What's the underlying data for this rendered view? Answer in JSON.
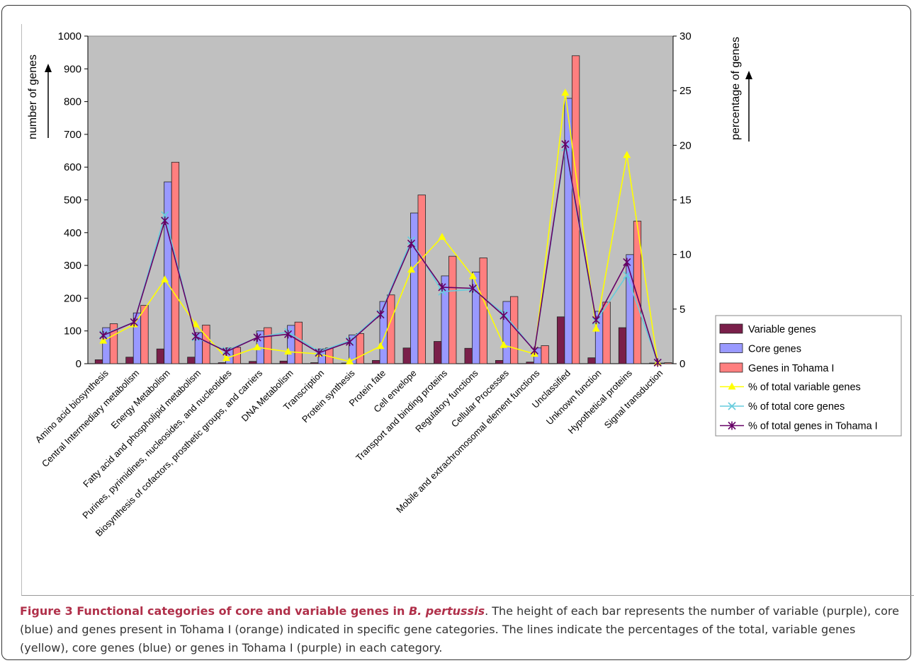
{
  "chart_data": {
    "type": "bar",
    "categories": [
      "Amino acid biosynthesis",
      "Central Intermediary metabolism",
      "Energy Metabolism",
      "Fatty acid and phospholipid metabolism",
      "Purines, pyrimidines, nucleosides, and nucleotides",
      "Biosynthesis of cofactors, prosthetic groups, and carriers",
      "DNA Metabolism",
      "Transcription",
      "Protein synthesis",
      "Protein fate",
      "Cell envelope",
      "Transport and binding proteins",
      "Regulatory functions",
      "Cellular Processes",
      "Mobile and extrachromosomal element functions",
      "Unclassified",
      "Unknown function",
      "Hypothetical proteins",
      "Signal transduction"
    ],
    "bar_series": [
      {
        "name": "Variable genes",
        "color": "#7a1f4a",
        "values": [
          12,
          20,
          45,
          20,
          3,
          7,
          8,
          3,
          2,
          10,
          48,
          68,
          47,
          10,
          5,
          143,
          18,
          110,
          2
        ]
      },
      {
        "name": "Core genes",
        "color": "#9999ff",
        "values": [
          110,
          155,
          555,
          95,
          48,
          100,
          117,
          45,
          88,
          190,
          460,
          268,
          280,
          190,
          48,
          810,
          160,
          333,
          2
        ]
      },
      {
        "name": "Genes in Tohama I",
        "color": "#ff7f7f",
        "values": [
          122,
          178,
          615,
          118,
          50,
          110,
          127,
          48,
          92,
          210,
          515,
          328,
          323,
          205,
          55,
          940,
          188,
          435,
          3
        ]
      }
    ],
    "line_series": [
      {
        "name": "% of total variable  genes",
        "color": "#ffff00",
        "marker": "triangle",
        "values": [
          2.1,
          3.6,
          7.7,
          3.6,
          0.5,
          1.5,
          1.1,
          0.9,
          0.2,
          1.6,
          8.6,
          11.6,
          8.0,
          1.7,
          0.9,
          24.8,
          3.2,
          19.1,
          0.1
        ]
      },
      {
        "name": "% of total core genes",
        "color": "#66ccdd",
        "marker": "x",
        "values": [
          2.7,
          3.8,
          13.6,
          2.4,
          1.2,
          2.4,
          2.9,
          1.1,
          2.1,
          4.6,
          11.3,
          6.6,
          6.8,
          4.6,
          1.2,
          19.8,
          3.9,
          8.1,
          0.1
        ]
      },
      {
        "name": "% of total genes in Tohama I",
        "color": "#660066",
        "marker": "star",
        "values": [
          2.6,
          3.8,
          13.1,
          2.5,
          1.1,
          2.4,
          2.7,
          1.0,
          2.0,
          4.5,
          11.0,
          7.0,
          6.9,
          4.4,
          1.2,
          20.1,
          4.0,
          9.3,
          0.1
        ]
      }
    ],
    "y_left": {
      "label": "number of genes",
      "lim": [
        0,
        1000
      ],
      "ticks": [
        "0",
        "100",
        "200",
        "300",
        "400",
        "500",
        "600",
        "700",
        "800",
        "900",
        "1000"
      ]
    },
    "y_right": {
      "label": "percentage of genes",
      "lim": [
        0,
        30
      ],
      "ticks": [
        "0",
        "5",
        "10",
        "15",
        "20",
        "25",
        "30"
      ]
    },
    "plot_background": "#c0c0c0",
    "legend_position": "right"
  },
  "caption": {
    "lead": "Figure 3 Functional categories of core and variable genes in ",
    "lead_italic": "B. pertussis",
    "body": ". The height of each bar represents the number of variable (purple), core (blue) and genes present in Tohama I (orange) indicated in specific gene categories. The lines indicate the percentages of the total, variable genes (yellow), core genes (blue) or genes in Tohama I (purple) in each category."
  }
}
